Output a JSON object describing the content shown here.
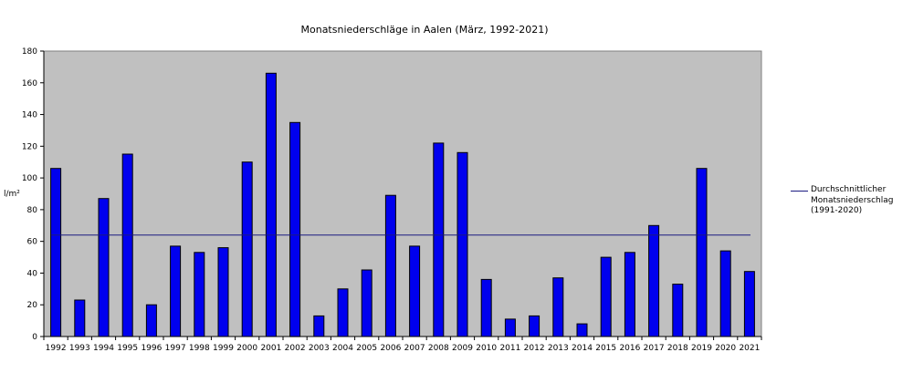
{
  "chart_data": {
    "type": "bar",
    "title": "Monatsniederschläge in Aalen (März, 1992-2021)",
    "ylabel": "l/m²",
    "ylim": [
      0,
      180
    ],
    "yticks": [
      0,
      20,
      40,
      60,
      80,
      100,
      120,
      140,
      160,
      180
    ],
    "categories": [
      "1992",
      "1993",
      "1994",
      "1995",
      "1996",
      "1997",
      "1998",
      "1999",
      "2000",
      "2001",
      "2002",
      "2003",
      "2004",
      "2005",
      "2006",
      "2007",
      "2008",
      "2009",
      "2010",
      "2011",
      "2012",
      "2013",
      "2014",
      "2015",
      "2016",
      "2017",
      "2018",
      "2019",
      "2020",
      "2021"
    ],
    "values": [
      106,
      23,
      87,
      115,
      20,
      57,
      53,
      56,
      110,
      166,
      135,
      13,
      30,
      42,
      89,
      57,
      122,
      116,
      36,
      11,
      13,
      37,
      8,
      50,
      53,
      70,
      33,
      106,
      54,
      41
    ],
    "reference_line": {
      "value": 64,
      "label": "Durchschnittlicher Monatsniederschlag (1991-2020)"
    },
    "grid": false,
    "legend_position": "right",
    "colors": {
      "bar": "#0000ee",
      "bar_edge": "#000000",
      "plot_bg": "#c0c0c0",
      "reference_line": "#1a1a80"
    }
  }
}
